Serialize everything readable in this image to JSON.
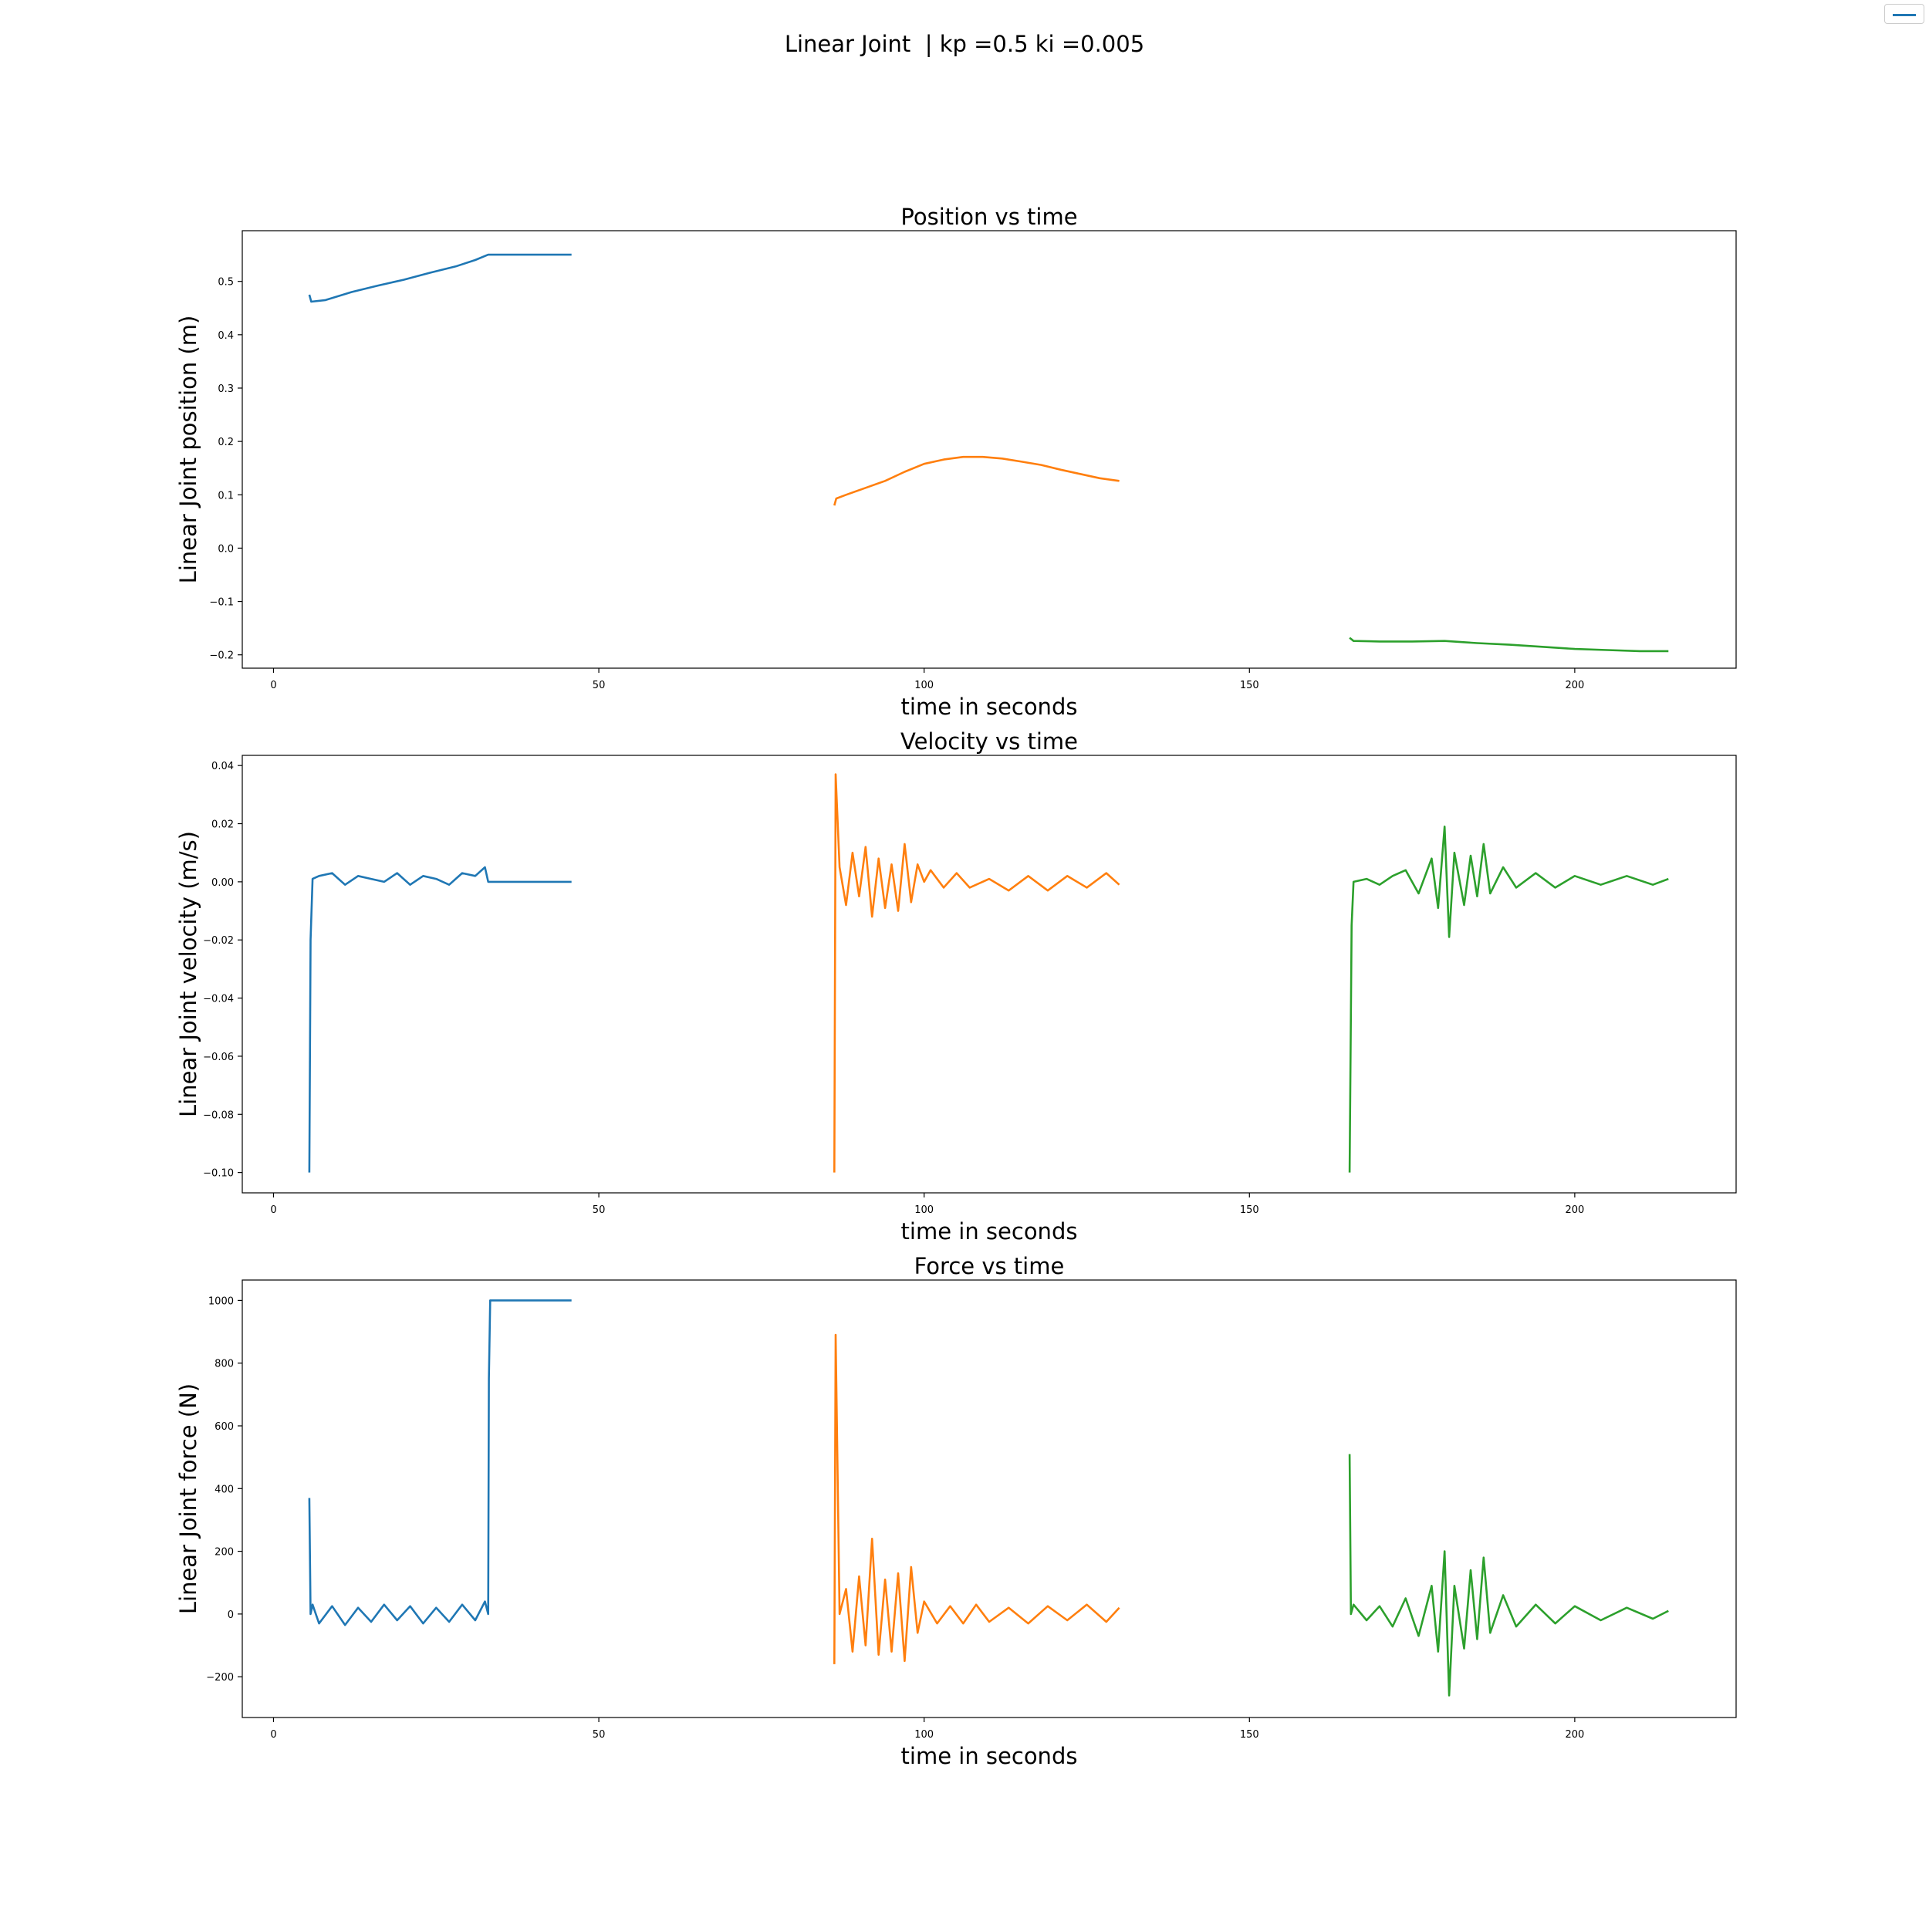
{
  "figure": {
    "suptitle": "Linear Joint  | kp =0.5 ki =0.005",
    "legend": {
      "entries": [
        {
          "label": "",
          "color": "#1f77b4"
        }
      ],
      "placement": "upper-right"
    }
  },
  "chart_data": [
    {
      "type": "line",
      "title": "Position vs time",
      "xlabel": "time in seconds",
      "ylabel": "Linear Joint position (m)",
      "xlim": [
        -4.8,
        224.8
      ],
      "ylim": [
        -0.225,
        0.595
      ],
      "xticks": [
        0,
        50,
        100,
        150,
        200
      ],
      "yticks": [
        -0.2,
        -0.1,
        0.0,
        0.1,
        0.2,
        0.3,
        0.4,
        0.5
      ],
      "ytick_labels": [
        "−0.2",
        "−0.1",
        "0.0",
        "0.1",
        "0.2",
        "0.3",
        "0.4",
        "0.5"
      ],
      "grid": false,
      "series": [
        {
          "color": "#1f77b4",
          "points": [
            [
              5.5,
              0.475
            ],
            [
              5.8,
              0.462
            ],
            [
              8,
              0.465
            ],
            [
              12,
              0.48
            ],
            [
              16,
              0.492
            ],
            [
              20,
              0.503
            ],
            [
              24,
              0.516
            ],
            [
              28,
              0.528
            ],
            [
              31,
              0.54
            ],
            [
              33,
              0.55
            ],
            [
              40,
              0.55
            ],
            [
              45.8,
              0.55
            ]
          ]
        },
        {
          "color": "#ff7f0e",
          "points": [
            [
              86.2,
              0.08
            ],
            [
              86.5,
              0.093
            ],
            [
              88,
              0.1
            ],
            [
              91,
              0.113
            ],
            [
              94,
              0.126
            ],
            [
              97,
              0.143
            ],
            [
              100,
              0.158
            ],
            [
              103,
              0.166
            ],
            [
              106,
              0.171
            ],
            [
              109,
              0.171
            ],
            [
              112,
              0.168
            ],
            [
              115,
              0.162
            ],
            [
              118,
              0.156
            ],
            [
              121,
              0.147
            ],
            [
              124,
              0.139
            ],
            [
              127,
              0.131
            ],
            [
              130,
              0.126
            ]
          ]
        },
        {
          "color": "#2ca02c",
          "points": [
            [
              165.4,
              -0.168
            ],
            [
              166,
              -0.174
            ],
            [
              170,
              -0.175
            ],
            [
              175,
              -0.175
            ],
            [
              180,
              -0.174
            ],
            [
              185,
              -0.178
            ],
            [
              190,
              -0.181
            ],
            [
              195,
              -0.185
            ],
            [
              200,
              -0.189
            ],
            [
              205,
              -0.191
            ],
            [
              210,
              -0.193
            ],
            [
              214.4,
              -0.193
            ]
          ]
        }
      ]
    },
    {
      "type": "line",
      "title": "Velocity vs time",
      "xlabel": "time in seconds",
      "ylabel": "Linear Joint velocity (m/s)",
      "xlim": [
        -4.8,
        224.8
      ],
      "ylim": [
        -0.107,
        0.0435
      ],
      "xticks": [
        0,
        50,
        100,
        150,
        200
      ],
      "yticks": [
        -0.1,
        -0.08,
        -0.06,
        -0.04,
        -0.02,
        0.0,
        0.02,
        0.04
      ],
      "ytick_labels": [
        "−0.10",
        "−0.08",
        "−0.06",
        "−0.04",
        "−0.02",
        "0.00",
        "0.02",
        "0.04"
      ],
      "grid": false,
      "series": [
        {
          "color": "#1f77b4",
          "points": [
            [
              5.5,
              -0.1
            ],
            [
              5.7,
              -0.02
            ],
            [
              6,
              0.001
            ],
            [
              7,
              0.002
            ],
            [
              9,
              0.003
            ],
            [
              11,
              -0.001
            ],
            [
              13,
              0.002
            ],
            [
              15,
              0.001
            ],
            [
              17,
              0.0
            ],
            [
              19,
              0.003
            ],
            [
              21,
              -0.001
            ],
            [
              23,
              0.002
            ],
            [
              25,
              0.001
            ],
            [
              27,
              -0.001
            ],
            [
              29,
              0.003
            ],
            [
              31,
              0.002
            ],
            [
              32.5,
              0.005
            ],
            [
              33,
              0.0
            ],
            [
              40,
              0.0
            ],
            [
              45.8,
              0.0
            ]
          ]
        },
        {
          "color": "#ff7f0e",
          "points": [
            [
              86.2,
              -0.1
            ],
            [
              86.4,
              0.037
            ],
            [
              87,
              0.005
            ],
            [
              88,
              -0.008
            ],
            [
              89,
              0.01
            ],
            [
              90,
              -0.005
            ],
            [
              91,
              0.012
            ],
            [
              92,
              -0.012
            ],
            [
              93,
              0.008
            ],
            [
              94,
              -0.009
            ],
            [
              95,
              0.006
            ],
            [
              96,
              -0.01
            ],
            [
              97,
              0.013
            ],
            [
              98,
              -0.007
            ],
            [
              99,
              0.006
            ],
            [
              100,
              0.0
            ],
            [
              101,
              0.004
            ],
            [
              103,
              -0.002
            ],
            [
              105,
              0.003
            ],
            [
              107,
              -0.002
            ],
            [
              110,
              0.001
            ],
            [
              113,
              -0.003
            ],
            [
              116,
              0.002
            ],
            [
              119,
              -0.003
            ],
            [
              122,
              0.002
            ],
            [
              125,
              -0.002
            ],
            [
              128,
              0.003
            ],
            [
              130,
              -0.001
            ]
          ]
        },
        {
          "color": "#2ca02c",
          "points": [
            [
              165.4,
              -0.1
            ],
            [
              165.7,
              -0.015
            ],
            [
              166,
              0.0
            ],
            [
              168,
              0.001
            ],
            [
              170,
              -0.001
            ],
            [
              172,
              0.002
            ],
            [
              174,
              0.004
            ],
            [
              176,
              -0.004
            ],
            [
              178,
              0.008
            ],
            [
              179,
              -0.009
            ],
            [
              180,
              0.019
            ],
            [
              180.7,
              -0.019
            ],
            [
              181.5,
              0.01
            ],
            [
              183,
              -0.008
            ],
            [
              184,
              0.009
            ],
            [
              185,
              -0.005
            ],
            [
              186,
              0.013
            ],
            [
              187,
              -0.004
            ],
            [
              189,
              0.005
            ],
            [
              191,
              -0.002
            ],
            [
              194,
              0.003
            ],
            [
              197,
              -0.002
            ],
            [
              200,
              0.002
            ],
            [
              204,
              -0.001
            ],
            [
              208,
              0.002
            ],
            [
              212,
              -0.001
            ],
            [
              214.4,
              0.001
            ]
          ]
        }
      ]
    },
    {
      "type": "line",
      "title": "Force vs time",
      "xlabel": "time in seconds",
      "ylabel": "Linear Joint force (N)",
      "xlim": [
        -4.8,
        224.8
      ],
      "ylim": [
        -330,
        1065
      ],
      "xticks": [
        0,
        50,
        100,
        150,
        200
      ],
      "yticks": [
        -200,
        0,
        200,
        400,
        600,
        800,
        1000
      ],
      "ytick_labels": [
        "−200",
        "0",
        "200",
        "400",
        "600",
        "800",
        "1000"
      ],
      "grid": false,
      "series": [
        {
          "color": "#1f77b4",
          "points": [
            [
              5.5,
              370
            ],
            [
              5.7,
              0
            ],
            [
              6,
              30
            ],
            [
              7,
              -30
            ],
            [
              9,
              25
            ],
            [
              11,
              -35
            ],
            [
              13,
              20
            ],
            [
              15,
              -25
            ],
            [
              17,
              30
            ],
            [
              19,
              -20
            ],
            [
              21,
              25
            ],
            [
              23,
              -30
            ],
            [
              25,
              20
            ],
            [
              27,
              -25
            ],
            [
              29,
              30
            ],
            [
              31,
              -20
            ],
            [
              32.5,
              40
            ],
            [
              33,
              0
            ],
            [
              33.1,
              750
            ],
            [
              33.3,
              1000
            ],
            [
              40,
              1000
            ],
            [
              45.8,
              1000
            ]
          ]
        },
        {
          "color": "#ff7f0e",
          "points": [
            [
              86.2,
              -160
            ],
            [
              86.4,
              890
            ],
            [
              87,
              0
            ],
            [
              88,
              80
            ],
            [
              89,
              -120
            ],
            [
              90,
              120
            ],
            [
              91,
              -100
            ],
            [
              92,
              240
            ],
            [
              93,
              -130
            ],
            [
              94,
              110
            ],
            [
              95,
              -120
            ],
            [
              96,
              130
            ],
            [
              97,
              -150
            ],
            [
              98,
              150
            ],
            [
              99,
              -60
            ],
            [
              100,
              40
            ],
            [
              102,
              -30
            ],
            [
              104,
              25
            ],
            [
              106,
              -30
            ],
            [
              108,
              30
            ],
            [
              110,
              -25
            ],
            [
              113,
              20
            ],
            [
              116,
              -30
            ],
            [
              119,
              25
            ],
            [
              122,
              -20
            ],
            [
              125,
              30
            ],
            [
              128,
              -25
            ],
            [
              130,
              20
            ]
          ]
        },
        {
          "color": "#2ca02c",
          "points": [
            [
              165.4,
              510
            ],
            [
              165.6,
              0
            ],
            [
              166,
              30
            ],
            [
              168,
              -20
            ],
            [
              170,
              25
            ],
            [
              172,
              -40
            ],
            [
              174,
              50
            ],
            [
              176,
              -70
            ],
            [
              178,
              90
            ],
            [
              179,
              -120
            ],
            [
              180,
              200
            ],
            [
              180.7,
              -260
            ],
            [
              181.5,
              90
            ],
            [
              183,
              -110
            ],
            [
              184,
              140
            ],
            [
              185,
              -80
            ],
            [
              186,
              180
            ],
            [
              187,
              -60
            ],
            [
              189,
              60
            ],
            [
              191,
              -40
            ],
            [
              194,
              30
            ],
            [
              197,
              -30
            ],
            [
              200,
              25
            ],
            [
              204,
              -20
            ],
            [
              208,
              20
            ],
            [
              212,
              -15
            ],
            [
              214.4,
              10
            ]
          ]
        }
      ]
    }
  ]
}
